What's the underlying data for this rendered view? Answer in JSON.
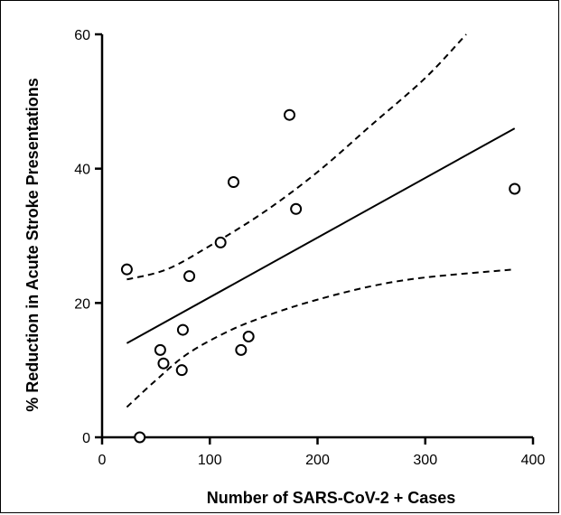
{
  "chart_data": {
    "type": "scatter",
    "xlabel": "Number of SARS-CoV-2 + Cases",
    "ylabel": "% Reduction in Acute Stroke Presentations",
    "xlim": [
      0,
      400
    ],
    "ylim": [
      0,
      60
    ],
    "x_ticks": [
      "0",
      "100",
      "200",
      "300",
      "400"
    ],
    "y_ticks": [
      "0",
      "20",
      "40",
      "60"
    ],
    "grid": false,
    "legend": "none",
    "points": [
      {
        "x": 23,
        "y": 25
      },
      {
        "x": 35,
        "y": 0
      },
      {
        "x": 54,
        "y": 13
      },
      {
        "x": 57,
        "y": 11
      },
      {
        "x": 74,
        "y": 10
      },
      {
        "x": 75,
        "y": 16
      },
      {
        "x": 81,
        "y": 24
      },
      {
        "x": 110,
        "y": 29
      },
      {
        "x": 122,
        "y": 38
      },
      {
        "x": 129,
        "y": 13
      },
      {
        "x": 136,
        "y": 15
      },
      {
        "x": 174,
        "y": 48
      },
      {
        "x": 180,
        "y": 34
      },
      {
        "x": 383,
        "y": 37
      }
    ],
    "regression_line": {
      "x": [
        23,
        383
      ],
      "y": [
        14.0,
        46.0
      ],
      "style": "solid"
    },
    "confidence_band_upper": {
      "x": [
        23,
        60,
        100,
        150,
        200,
        250,
        300,
        338
      ],
      "y": [
        23.5,
        25.0,
        28.5,
        33.5,
        39.5,
        46.5,
        53.5,
        60.0
      ],
      "style": "dashed"
    },
    "confidence_band_lower": {
      "x": [
        23,
        50,
        80,
        120,
        160,
        200,
        250,
        300,
        383
      ],
      "y": [
        4.5,
        8.5,
        12.5,
        16.0,
        18.5,
        20.5,
        22.5,
        23.8,
        25.0
      ],
      "style": "dashed"
    },
    "colors": {
      "line": "#000000",
      "marker_fill": "#ffffff"
    }
  }
}
